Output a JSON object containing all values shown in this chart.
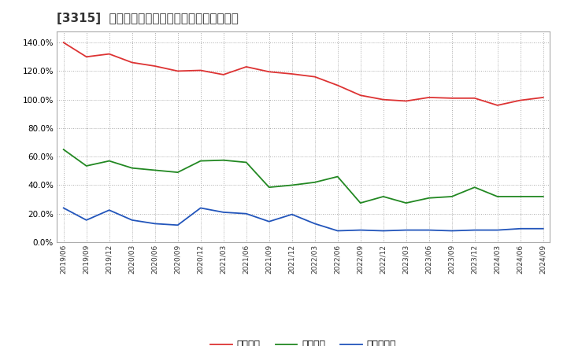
{
  "title": "[3315]  流動比率、当座比率、現預金比率の推移",
  "x_labels": [
    "2019/06",
    "2019/09",
    "2019/12",
    "2020/03",
    "2020/06",
    "2020/09",
    "2020/12",
    "2021/03",
    "2021/06",
    "2021/09",
    "2021/12",
    "2022/03",
    "2022/06",
    "2022/09",
    "2022/12",
    "2023/03",
    "2023/06",
    "2023/09",
    "2023/12",
    "2024/03",
    "2024/06",
    "2024/09"
  ],
  "ryudo": [
    140.0,
    130.0,
    132.0,
    126.0,
    123.5,
    120.0,
    120.5,
    117.5,
    123.0,
    119.5,
    118.0,
    116.0,
    110.0,
    103.0,
    100.0,
    99.0,
    101.5,
    101.0,
    101.0,
    96.0,
    99.5,
    101.5
  ],
  "toza": [
    65.0,
    53.5,
    57.0,
    52.0,
    50.5,
    49.0,
    57.0,
    57.5,
    56.0,
    38.5,
    40.0,
    42.0,
    46.0,
    27.5,
    32.0,
    27.5,
    31.0,
    32.0,
    38.5,
    32.0,
    32.0,
    32.0
  ],
  "genkin": [
    24.0,
    15.5,
    22.5,
    15.5,
    13.0,
    12.0,
    24.0,
    21.0,
    20.0,
    14.5,
    19.5,
    13.0,
    8.0,
    8.5,
    8.0,
    8.5,
    8.5,
    8.0,
    8.5,
    8.5,
    9.5,
    9.5
  ],
  "ryudo_color": "#dd3333",
  "toza_color": "#228822",
  "genkin_color": "#2255bb",
  "legend_labels": [
    "流動比率",
    "当座比率",
    "現預金比率"
  ],
  "yticks": [
    0.0,
    20.0,
    40.0,
    60.0,
    80.0,
    100.0,
    120.0,
    140.0
  ],
  "ylim": [
    0,
    148
  ],
  "bg_color": "#ffffff",
  "grid_color": "#aaaaaa",
  "title_fontsize": 11
}
